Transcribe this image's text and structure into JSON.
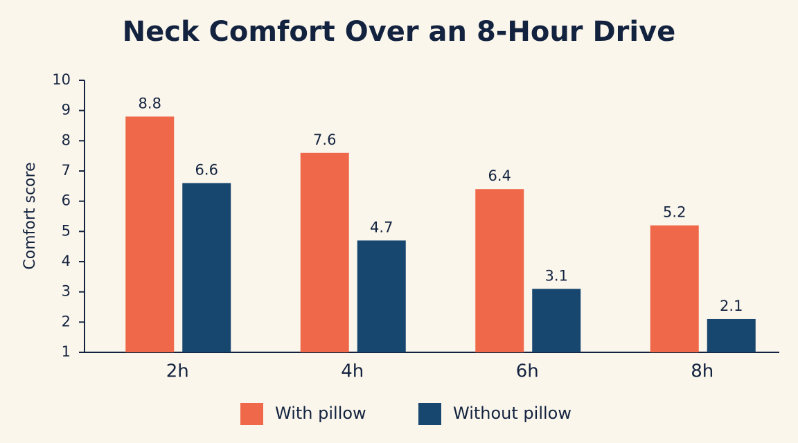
{
  "chart_data": {
    "type": "bar",
    "title": "Neck Comfort Over an 8-Hour Drive",
    "y_label": "Comfort score",
    "categories": [
      "2h",
      "4h",
      "6h",
      "8h"
    ],
    "series": [
      {
        "name": "With pillow",
        "color": "#ef6849",
        "values": [
          8.8,
          7.6,
          6.4,
          5.2
        ]
      },
      {
        "name": "Without pillow",
        "color": "#17466f",
        "values": [
          6.6,
          4.7,
          3.1,
          2.1
        ]
      }
    ],
    "ylim": [
      1,
      10
    ],
    "yticks": [
      1,
      2,
      3,
      4,
      5,
      6,
      7,
      8,
      9,
      10
    ],
    "grid": false,
    "legend": "bottom"
  }
}
